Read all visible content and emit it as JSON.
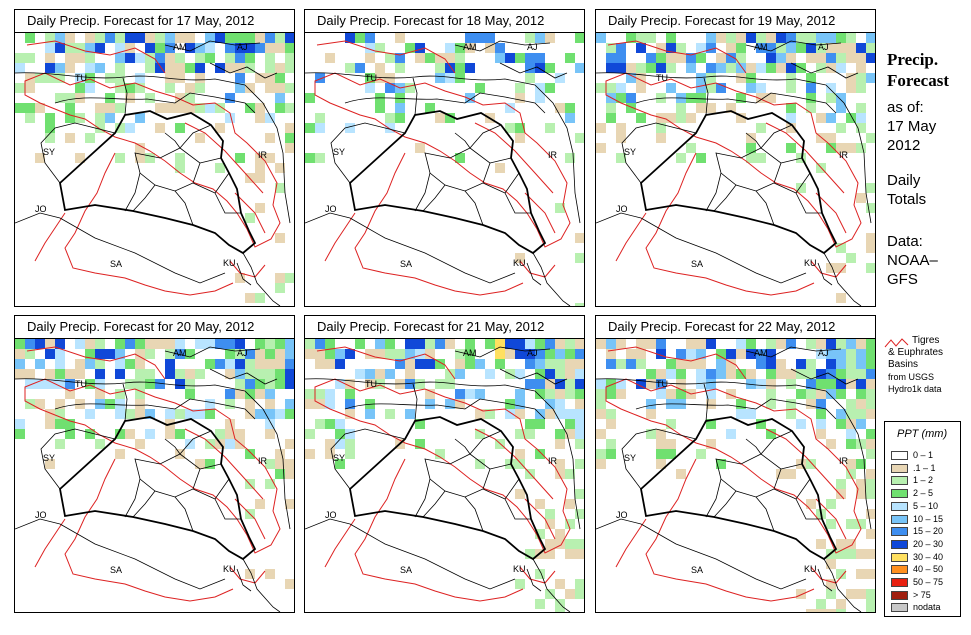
{
  "panels": [
    {
      "title": "Daily Precip. Forecast for  17 May, 2012",
      "seed": 17,
      "wet": 0.95
    },
    {
      "title": "Daily Precip. Forecast for  18 May, 2012",
      "seed": 18,
      "wet": 0.55
    },
    {
      "title": "Daily Precip. Forecast for  19 May, 2012",
      "seed": 19,
      "wet": 0.9
    },
    {
      "title": "Daily Precip. Forecast for  20 May, 2012",
      "seed": 20,
      "wet": 0.9
    },
    {
      "title": "Daily Precip. Forecast for  21 May, 2012",
      "seed": 21,
      "wet": 0.85
    },
    {
      "title": "Daily Precip. Forecast for  22 May, 2012",
      "seed": 22,
      "wet": 0.9
    }
  ],
  "country_labels": [
    "AM",
    "AJ",
    "TU",
    "SY",
    "IR",
    "JO",
    "SA",
    "KU"
  ],
  "side": {
    "title_line1": "Precip.",
    "title_line2": "Forecast",
    "asof": "as of:",
    "date1": "17 May",
    "date2": "2012",
    "daily1": "Daily",
    "daily2": "Totals",
    "data1": "Data:",
    "data2": "NOAA–",
    "data3": "GFS"
  },
  "basin_note": {
    "line1": "Tigres",
    "line2": "& Euphrates",
    "line3": "Basins",
    "line4": "from USGS",
    "line5": "Hydro1k data",
    "color": "#dd2222"
  },
  "legend": {
    "title": "PPT (mm)",
    "items": [
      {
        "label": "0 – 1",
        "color": "#ffffff"
      },
      {
        "label": ".1 – 1",
        "color": "#e8d6b4"
      },
      {
        "label": "1 – 2",
        "color": "#b8f0b0"
      },
      {
        "label": "2 – 5",
        "color": "#70e070"
      },
      {
        "label": "5 – 10",
        "color": "#b8e4ff"
      },
      {
        "label": "10 – 15",
        "color": "#78c4f8"
      },
      {
        "label": "15 – 20",
        "color": "#3e8ef0"
      },
      {
        "label": "20 – 30",
        "color": "#1048d8"
      },
      {
        "label": "30 – 40",
        "color": "#ffe060"
      },
      {
        "label": "40 – 50",
        "color": "#ff9020"
      },
      {
        "label": "50 – 75",
        "color": "#e82010"
      },
      {
        "label": "> 75",
        "color": "#a02010"
      },
      {
        "label": "nodata",
        "color": "#c8c8c8"
      }
    ]
  }
}
